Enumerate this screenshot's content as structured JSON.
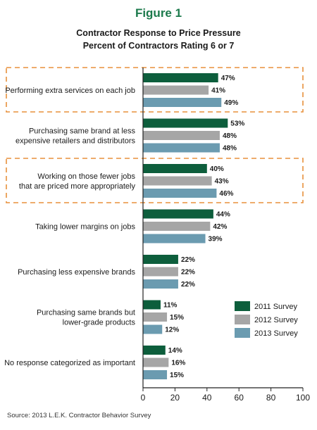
{
  "figure_label": "Figure 1",
  "source": "Source: 2013 L.E.K. Contractor Behavior Survey",
  "colors": {
    "series_2011": "#0d5e3c",
    "series_2012": "#a6a6a6",
    "series_2013": "#6b9bb0",
    "highlight_box": "#e8913c",
    "axis": "#222222"
  },
  "chart_data": {
    "type": "bar",
    "orientation": "horizontal",
    "title": "Contractor Response to Price Pressure",
    "subtitle": "Percent of Contractors Rating 6 or 7",
    "categories": [
      [
        "Performing extra services on each job"
      ],
      [
        "Purchasing same brand at less",
        "expensive retailers and distributors"
      ],
      [
        "Working on those fewer jobs",
        "that are priced more appropriately"
      ],
      [
        "Taking lower margins on jobs"
      ],
      [
        "Purchasing less expensive brands"
      ],
      [
        "Purchasing same brands but",
        "lower-grade products"
      ],
      [
        "No response categorized as important"
      ]
    ],
    "series": [
      {
        "name": "2011 Survey",
        "values": [
          47,
          53,
          40,
          44,
          22,
          11,
          14
        ]
      },
      {
        "name": "2012 Survey",
        "values": [
          41,
          48,
          43,
          42,
          22,
          15,
          16
        ]
      },
      {
        "name": "2013 Survey",
        "values": [
          49,
          48,
          46,
          39,
          22,
          12,
          15
        ]
      }
    ],
    "highlighted_categories": [
      0,
      2
    ],
    "xlim": [
      0,
      100
    ],
    "xticks": [
      0,
      20,
      40,
      60,
      80,
      100
    ],
    "value_suffix": "%",
    "legend_position": "right"
  }
}
